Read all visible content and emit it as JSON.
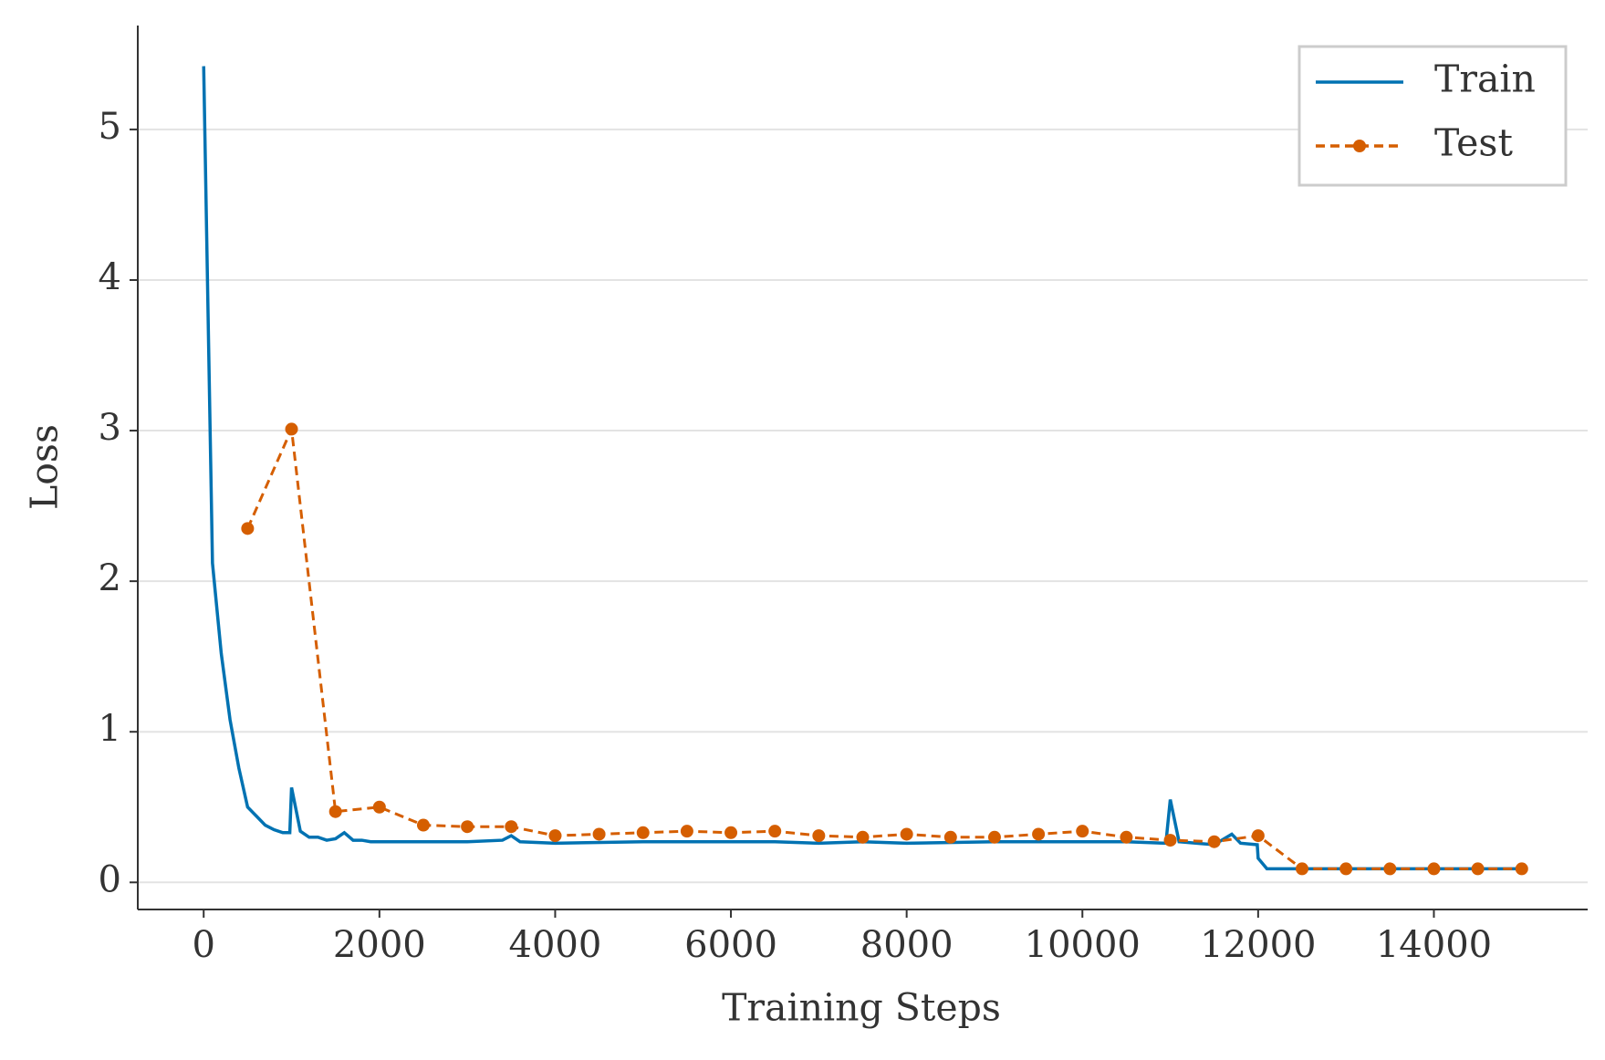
{
  "chart_data": {
    "type": "line",
    "xlabel": "Training Steps",
    "ylabel": "Loss",
    "xlim": [
      -750,
      15750
    ],
    "xticks": [
      0,
      2000,
      4000,
      6000,
      8000,
      10000,
      12000,
      14000
    ],
    "ylim": [
      -0.18,
      5.69
    ],
    "yticks": [
      0,
      1,
      2,
      3,
      4,
      5
    ],
    "grid": true,
    "legend": "upper right",
    "series": [
      {
        "name": "Train",
        "color": "#0072b2",
        "dash": false,
        "marker": false,
        "x": [
          0,
          100,
          200,
          300,
          400,
          500,
          600,
          700,
          800,
          900,
          980,
          1000,
          1100,
          1200,
          1300,
          1400,
          1500,
          1600,
          1700,
          1800,
          1900,
          2000,
          2500,
          3000,
          3400,
          3500,
          3600,
          4000,
          5000,
          6000,
          6500,
          7000,
          7500,
          8000,
          9000,
          10000,
          10500,
          10950,
          11000,
          11100,
          11500,
          11700,
          11800,
          11990,
          12000,
          12100,
          12500,
          13000,
          14000,
          15000
        ],
        "values": [
          5.42,
          2.12,
          1.52,
          1.08,
          0.76,
          0.5,
          0.44,
          0.38,
          0.35,
          0.33,
          0.33,
          0.63,
          0.34,
          0.3,
          0.3,
          0.28,
          0.29,
          0.33,
          0.28,
          0.28,
          0.27,
          0.27,
          0.27,
          0.27,
          0.28,
          0.31,
          0.27,
          0.26,
          0.27,
          0.27,
          0.27,
          0.26,
          0.27,
          0.26,
          0.27,
          0.27,
          0.27,
          0.26,
          0.55,
          0.27,
          0.25,
          0.32,
          0.26,
          0.25,
          0.16,
          0.09,
          0.09,
          0.09,
          0.09,
          0.09
        ]
      },
      {
        "name": "Test",
        "color": "#d55e00",
        "dash": true,
        "marker": true,
        "x": [
          500,
          1000,
          1500,
          2000,
          2500,
          3000,
          3500,
          4000,
          4500,
          5000,
          5500,
          6000,
          6500,
          7000,
          7500,
          8000,
          8500,
          9000,
          9500,
          10000,
          10500,
          11000,
          11500,
          12000,
          12500,
          13000,
          13500,
          14000,
          14500,
          15000
        ],
        "values": [
          2.35,
          3.01,
          0.47,
          0.5,
          0.38,
          0.37,
          0.37,
          0.31,
          0.32,
          0.33,
          0.34,
          0.33,
          0.34,
          0.31,
          0.3,
          0.32,
          0.3,
          0.3,
          0.32,
          0.34,
          0.3,
          0.28,
          0.27,
          0.31,
          0.09,
          0.09,
          0.09,
          0.09,
          0.09,
          0.09
        ]
      }
    ]
  }
}
